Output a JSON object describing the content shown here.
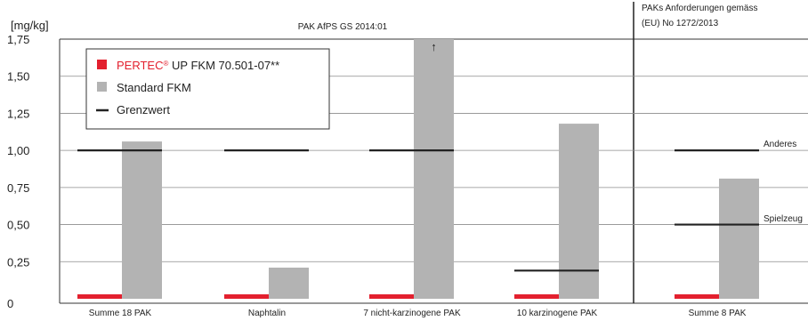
{
  "chart_data": {
    "type": "bar",
    "unit_label": "[mg/kg]",
    "header_left": "PAK AfPS GS 2014:01",
    "header_right": [
      "PAKs Anforderungen gemäss",
      "(EU) No 1272/2013"
    ],
    "ylim": [
      0,
      1.75
    ],
    "yticks": [
      "0",
      "0,25",
      "0,50",
      "0,75",
      "1,00",
      "1,25",
      "1,50",
      "1,75"
    ],
    "categories": [
      "Summe 18 PAK",
      "Naphtalin",
      "7 nicht-karzinogene PAK",
      "10 karzinogene PAK",
      "Summe 8 PAK"
    ],
    "series": [
      {
        "name": "PERTEC® UP FKM 70.501-07**",
        "color": "#e3202e",
        "values": [
          0.03,
          0.03,
          0.03,
          0.03,
          0.03
        ]
      },
      {
        "name": "Standard FKM",
        "color": "#b3b3b3",
        "values": [
          1.06,
          0.21,
          1.75,
          1.18,
          0.81
        ]
      }
    ],
    "limits": {
      "name": "Grenzwert",
      "color": "#222222",
      "values": [
        [
          1.0
        ],
        [
          1.0
        ],
        [
          1.0
        ],
        [
          0.19
        ],
        [
          1.0,
          0.5
        ]
      ]
    },
    "limit_notes": [
      {
        "text": "Anderes",
        "value": 1.0
      },
      {
        "text": "Spielzeug",
        "value": 0.5
      }
    ],
    "overflow_arrow": "↑",
    "legend": {
      "series_label": "PERTEC",
      "series_sup": "®",
      "series_rest": " UP FKM 70.501-07**",
      "standard": "Standard FKM",
      "limit": "Grenzwert"
    }
  }
}
